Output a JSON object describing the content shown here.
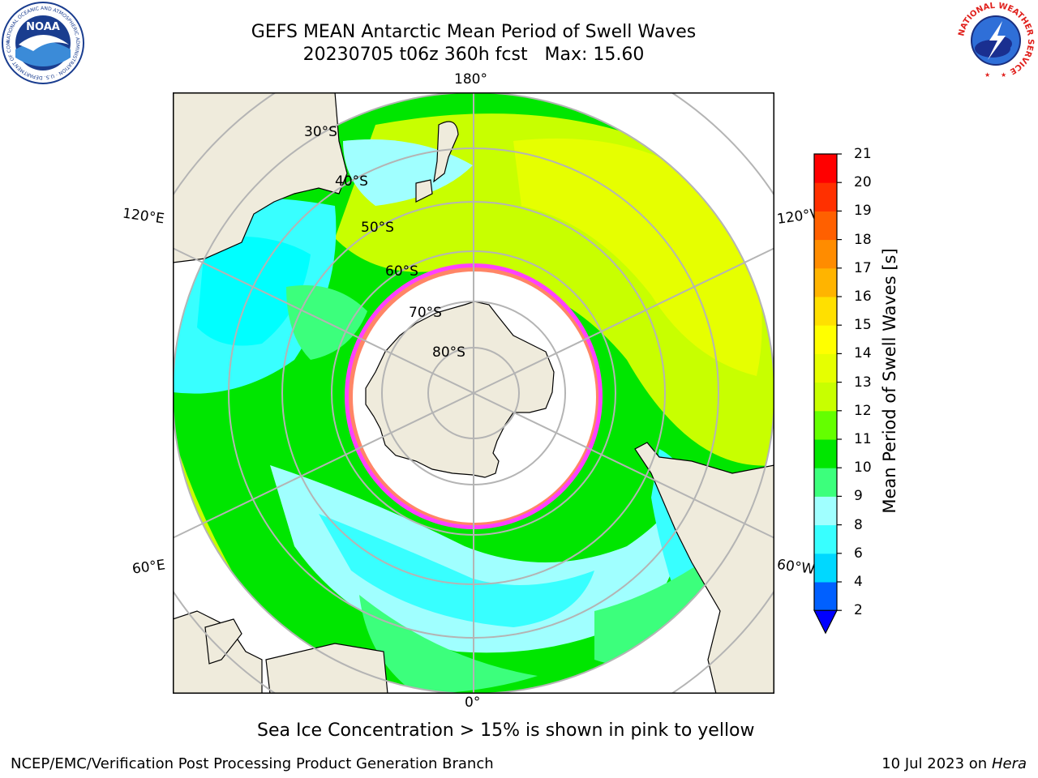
{
  "header": {
    "title_line1": "GEFS MEAN Antarctic Mean Period of Swell Waves",
    "title_line2": "20230705 t06z 360h fcst   Max: 15.60"
  },
  "logos": {
    "left": {
      "text": "NOAA",
      "ring_text": "NATIONAL OCEANIC AND ATMOSPHERIC ADMINISTRATION · U.S. DEPARTMENT OF COMMERCE"
    },
    "right": {
      "ring_text": "NATIONAL WEATHER SERVICE"
    }
  },
  "map": {
    "projection": "south-polar-stereographic",
    "longitude_labels": {
      "top": "180°",
      "bottom": "0°",
      "left_upper": "120°E",
      "left_lower": "60°E",
      "right_upper": "120°W",
      "right_lower": "60°W"
    },
    "latitude_labels": [
      "30°S",
      "40°S",
      "50°S",
      "60°S",
      "70°S",
      "80°S"
    ],
    "colors": {
      "land": "#efebdc",
      "ocean_background": "#ffffff",
      "graticule": "#b4b4b4",
      "sea_ice": "#ff40ff"
    }
  },
  "colorbar": {
    "label": "Mean Period of Swell Waves [s]",
    "ticks": [
      "2",
      "4",
      "6",
      "8",
      "9",
      "10",
      "11",
      "12",
      "13",
      "14",
      "15",
      "16",
      "17",
      "18",
      "19",
      "20",
      "21"
    ],
    "colors": [
      "#0060ff",
      "#00d8ff",
      "#38ffff",
      "#a0ffff",
      "#3cff7c",
      "#00e600",
      "#64ff00",
      "#c8ff00",
      "#e6ff00",
      "#ffff00",
      "#ffe000",
      "#ffb400",
      "#ff8c00",
      "#ff6000",
      "#ff3000",
      "#ff0000"
    ],
    "under_color": "#0000ff"
  },
  "footer": {
    "caption": "Sea Ice Concentration > 15% is shown in pink to yellow",
    "credit": "NCEP/EMC/Verification Post Processing Product Generation Branch",
    "date": "10 Jul 2023 on ",
    "host": "Hera"
  }
}
